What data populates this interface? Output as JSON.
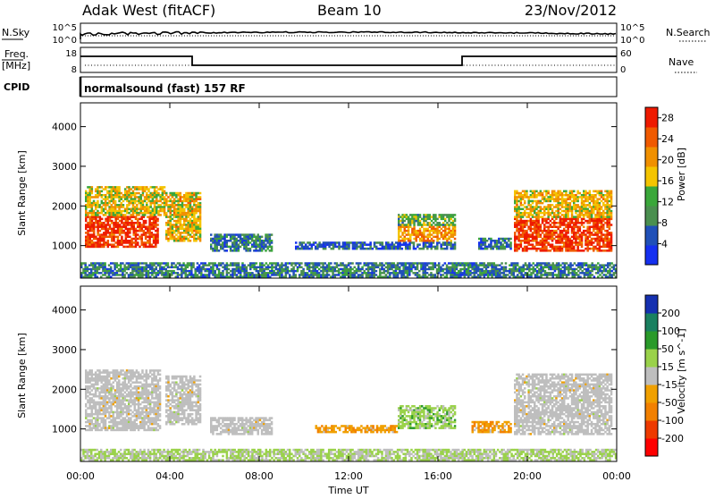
{
  "header": {
    "title": "Adak West (fitACF)",
    "beam": "Beam 10",
    "date": "23/Nov/2012"
  },
  "left_labels": {
    "nsky": "N.Sky",
    "freq_line1": "Freq.",
    "freq_line2": "[MHz]",
    "cpid": "CPID"
  },
  "right_labels": {
    "nsearch": "N.Search",
    "nave": "Nave"
  },
  "cpid_text": "normalsound (fast) 157 RF",
  "noise_panel": {
    "ytick_top": "10^5",
    "ytick_bottom": "10^0"
  },
  "freq_panel": {
    "yticks_left": [
      "18",
      "8"
    ],
    "yticks_right": [
      "60",
      "0"
    ]
  },
  "colors": {
    "power_scale": [
      "#1530f0",
      "#2050b8",
      "#4a8f4f",
      "#3aa73a",
      "#f4c400",
      "#f09000",
      "#f05a00",
      "#ee1a00"
    ],
    "velocity_scale": [
      "#ff0000",
      "#ee3a00",
      "#f28000",
      "#f0a000",
      "#bebebe",
      "#9ad24a",
      "#2a9a2a",
      "#1a8060",
      "#1530b0"
    ],
    "ground_scatter": "#bebebe"
  },
  "chart_data": [
    {
      "type": "heatmap",
      "title": "",
      "xlabel": "Time UT",
      "ylabel": "Slant Range [km]",
      "x_ticks": [
        "00:00",
        "04:00",
        "08:00",
        "12:00",
        "16:00",
        "20:00",
        "00:00"
      ],
      "y_ticks": [
        "1000",
        "2000",
        "3000",
        "4000"
      ],
      "ylim": [
        180,
        4600
      ],
      "xlim_hours": [
        0,
        24
      ],
      "colorbar": {
        "label": "Power [dB]",
        "ticks": [
          "4",
          "8",
          "12",
          "16",
          "20",
          "24",
          "28"
        ],
        "range": [
          0,
          30
        ]
      },
      "regions": [
        {
          "t0": 0.2,
          "t1": 3.5,
          "r0": 950,
          "r1": 1750,
          "value": 27
        },
        {
          "t0": 0.2,
          "t1": 3.8,
          "r0": 1750,
          "r1": 2500,
          "value": 17
        },
        {
          "t0": 3.8,
          "t1": 5.4,
          "r0": 1100,
          "r1": 2350,
          "value": 18
        },
        {
          "t0": 5.8,
          "t1": 8.6,
          "r0": 850,
          "r1": 1300,
          "value": 8
        },
        {
          "t0": 9.6,
          "t1": 16.8,
          "r0": 900,
          "r1": 1100,
          "value": 6
        },
        {
          "t0": 14.2,
          "t1": 16.8,
          "r0": 1100,
          "r1": 1500,
          "value": 21
        },
        {
          "t0": 14.2,
          "t1": 16.8,
          "r0": 1500,
          "r1": 1800,
          "value": 12
        },
        {
          "t0": 17.8,
          "t1": 19.3,
          "r0": 900,
          "r1": 1200,
          "value": 7
        },
        {
          "t0": 19.4,
          "t1": 23.8,
          "r0": 850,
          "r1": 1700,
          "value": 27
        },
        {
          "t0": 19.4,
          "t1": 23.8,
          "r0": 1700,
          "r1": 2400,
          "value": 18
        },
        {
          "t0": 0.0,
          "t1": 24.0,
          "r0": 190,
          "r1": 580,
          "value": 8
        }
      ]
    },
    {
      "type": "heatmap",
      "title": "",
      "xlabel": "Time UT",
      "ylabel": "Slant Range [km]",
      "x_ticks": [
        "00:00",
        "04:00",
        "08:00",
        "12:00",
        "16:00",
        "20:00",
        "00:00"
      ],
      "y_ticks": [
        "1000",
        "2000",
        "3000",
        "4000"
      ],
      "ylim": [
        180,
        4600
      ],
      "xlim_hours": [
        0,
        24
      ],
      "colorbar": {
        "label": "Velocity [m s^-1]",
        "ticks": [
          "-200",
          "-100",
          "-50",
          "-15",
          "15",
          "50",
          "100",
          "200"
        ],
        "range": [
          -250,
          250
        ]
      },
      "regions": [
        {
          "t0": 0.2,
          "t1": 3.6,
          "r0": 950,
          "r1": 2500,
          "value": 0
        },
        {
          "t0": 3.8,
          "t1": 5.4,
          "r0": 1100,
          "r1": 2350,
          "value": 0
        },
        {
          "t0": 5.8,
          "t1": 8.6,
          "r0": 850,
          "r1": 1300,
          "value": 0
        },
        {
          "t0": 10.5,
          "t1": 14.2,
          "r0": 900,
          "r1": 1100,
          "value": -40
        },
        {
          "t0": 14.2,
          "t1": 16.8,
          "r0": 1000,
          "r1": 1600,
          "value": 30
        },
        {
          "t0": 17.5,
          "t1": 19.3,
          "r0": 900,
          "r1": 1200,
          "value": -40
        },
        {
          "t0": 19.4,
          "t1": 23.8,
          "r0": 850,
          "r1": 2400,
          "value": 0
        },
        {
          "t0": 0.0,
          "t1": 24.0,
          "r0": 190,
          "r1": 500,
          "value": 20
        }
      ]
    }
  ]
}
